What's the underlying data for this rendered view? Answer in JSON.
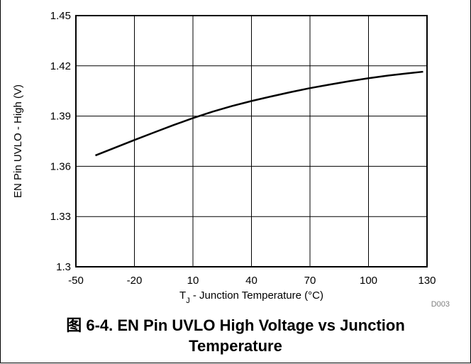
{
  "chart_data": {
    "type": "line",
    "xlabel_main": "T",
    "xlabel_sub": "J",
    "xlabel_rest": " - Junction Temperature (°C)",
    "ylabel": "EN Pin UVLO - High (V)",
    "xlim": [
      -50,
      130
    ],
    "ylim": [
      1.3,
      1.45
    ],
    "x_ticks": [
      "-50",
      "-20",
      "10",
      "40",
      "70",
      "100",
      "130"
    ],
    "y_ticks": [
      "1.3",
      "1.33",
      "1.36",
      "1.39",
      "1.42",
      "1.45"
    ],
    "grid": true,
    "watermark": "D003",
    "series": [
      {
        "color": "#000000",
        "x": [
          -40,
          -30,
          -20,
          -10,
          0,
          10,
          20,
          30,
          40,
          50,
          60,
          70,
          80,
          90,
          100,
          110,
          120,
          128
        ],
        "y": [
          1.3665,
          1.3711,
          1.3757,
          1.3802,
          1.3846,
          1.3888,
          1.3926,
          1.396,
          1.399,
          1.4017,
          1.4043,
          1.4067,
          1.4088,
          1.4108,
          1.4126,
          1.4142,
          1.4155,
          1.4165
        ]
      }
    ]
  },
  "caption": {
    "line1": "图 6-4. EN Pin UVLO High Voltage vs Junction",
    "line2": "Temperature"
  }
}
